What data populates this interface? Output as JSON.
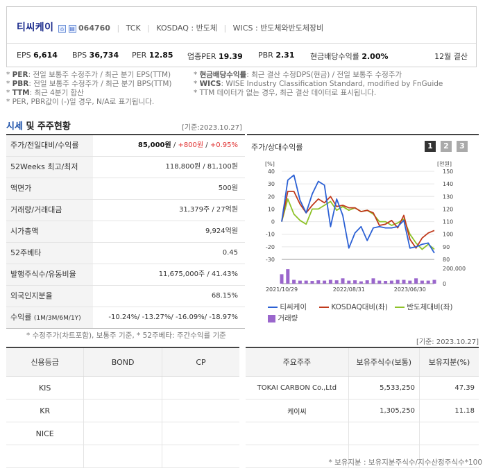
{
  "header": {
    "company_name": "티씨케이",
    "code": "064760",
    "ticker": "TCK",
    "market": "KOSDAQ : 반도체",
    "wics": "WICS : 반도체와반도체장비",
    "fiscal": "12월 결산",
    "ratios": [
      {
        "label": "EPS",
        "value": "6,614"
      },
      {
        "label": "BPS",
        "value": "36,734"
      },
      {
        "label": "PER",
        "value": "12.85"
      },
      {
        "label": "업종PER",
        "value": "19.39"
      },
      {
        "label": "PBR",
        "value": "2.31"
      },
      {
        "label": "현금배당수익률",
        "value": "2.00%"
      }
    ]
  },
  "notes": [
    {
      "term": "PER",
      "text": ": 전일 보통주 수정주가 / 최근 분기 EPS(TTM)"
    },
    {
      "term": "PBR",
      "text": ": 전일 보통주 수정주가 / 최근 분기 BPS(TTM)"
    },
    {
      "term": "TTM",
      "text": ": 최근 4분기 합산"
    },
    {
      "term": "",
      "text": "PER, PBR값이 (-)일 경우, N/A로 표기됩니다."
    },
    {
      "term": "현금배당수익률",
      "text": ": 최근 결산 수정DPS(현금) / 전일 보통주 수정주가"
    },
    {
      "term": "WICS",
      "text": ": WISE Industry Classification Standard, modified by FnGuide"
    },
    {
      "term": "",
      "text": "TTM 데이터가 없는 경우, 최근 결산 데이터로 표시됩니다."
    }
  ],
  "market": {
    "title_blue": "시세",
    "title_rest": " 및 주주현황",
    "base_date": "[기준:2023.10.27]",
    "rows": [
      {
        "label": "주가/전일대비/수익률",
        "v1": "85,000원",
        "v2": "+800원",
        "v3": "+0.95%"
      },
      {
        "label": "52Weeks 최고/최저",
        "value": "118,800원 / 81,100원"
      },
      {
        "label": "액면가",
        "value": "500원"
      },
      {
        "label": "거래량/거래대금",
        "value": "31,379주 / 27억원"
      },
      {
        "label": "시가총액",
        "value": "9,924억원"
      },
      {
        "label": "52주베타",
        "value": "0.45"
      },
      {
        "label": "발행주식수/유동비율",
        "value": "11,675,000주 / 41.43%"
      },
      {
        "label": "외국인지분율",
        "value": "68.15%"
      }
    ],
    "returns_label": "수익률",
    "returns_sub": "(1M/3M/6M/1Y)",
    "returns": [
      "-10.24%/",
      "-13.27%/",
      "-16.09%/",
      "-18.97%"
    ],
    "footnote": "* 수정주가(차트포함), 보통주 기준, * 52주베타: 주간수익률 기준"
  },
  "chart_panel": {
    "title": "주가/상대수익률",
    "buttons": [
      "1",
      "2",
      "3"
    ]
  },
  "chart_data": {
    "type": "line",
    "left_unit": "[%]",
    "right_unit": "[천원]",
    "left_ticks": [
      "40",
      "30",
      "20",
      "10",
      "0",
      "-10",
      "-20",
      "-30"
    ],
    "right_ticks": [
      "150",
      "140",
      "130",
      "120",
      "110",
      "100",
      "90",
      "80"
    ],
    "volume_ticks": [
      "200,000",
      "0"
    ],
    "ylim_left": [
      -30,
      40
    ],
    "x_ticks": [
      "2021/10/29",
      "2022/08/31",
      "2023/06/30"
    ],
    "series": [
      {
        "name": "티씨케이",
        "color": "#2b60d4",
        "values": [
          0,
          33,
          37,
          17,
          7,
          22,
          32,
          29,
          -4,
          18,
          5,
          -21,
          -9,
          -4,
          -15,
          -5,
          -4,
          -5,
          -5,
          -4,
          1,
          -21,
          -20,
          -18,
          -17,
          -25
        ]
      },
      {
        "name": "KOSDAQ대비(좌)",
        "color": "#c03a1c",
        "values": [
          0,
          24,
          24,
          14,
          7,
          13,
          18,
          15,
          20,
          12,
          13,
          11,
          11,
          8,
          9,
          7,
          -3,
          -2,
          1,
          -5,
          5,
          -14,
          -21,
          -13,
          -9,
          -7
        ]
      },
      {
        "name": "반도체대비(좌)",
        "color": "#8ec228",
        "values": [
          0,
          18,
          6,
          1,
          -2,
          10,
          10,
          13,
          16,
          9,
          12,
          9,
          11,
          8,
          9,
          6,
          0,
          0,
          -3,
          -1,
          2,
          -10,
          -17,
          -22,
          -18,
          -22
        ]
      }
    ],
    "volume": [
      0.62,
      0.95,
      0.25,
      0.2,
      0.2,
      0.18,
      0.22,
      0.2,
      0.25,
      0.22,
      0.35,
      0.2,
      0.22,
      0.15,
      0.22,
      0.35,
      0.2,
      0.18,
      0.2,
      0.25,
      0.25,
      0.2,
      0.35,
      0.2,
      0.2,
      0.25
    ],
    "volume_name": "거래량"
  },
  "chart_base_date": "[기준: 2023.10.27]",
  "credit": {
    "headers": [
      "신용등급",
      "BOND",
      "CP"
    ],
    "rows": [
      "KIS",
      "KR",
      "NICE"
    ]
  },
  "holders": {
    "headers": [
      "주요주주",
      "보유주식수(보통)",
      "보유지분(%)"
    ],
    "rows": [
      {
        "name": "TOKAI CARBON Co.,Ltd",
        "shares": "5,533,250",
        "pct": "47.39"
      },
      {
        "name": "케이씨",
        "shares": "1,305,250",
        "pct": "11.18"
      }
    ],
    "footnote": "* 보유지분 : 보유지분주식수/지수산정주식수*100"
  },
  "colors": {
    "accent": "#1a4fa8",
    "up": "#e03030",
    "down": "#1e5fcc"
  }
}
